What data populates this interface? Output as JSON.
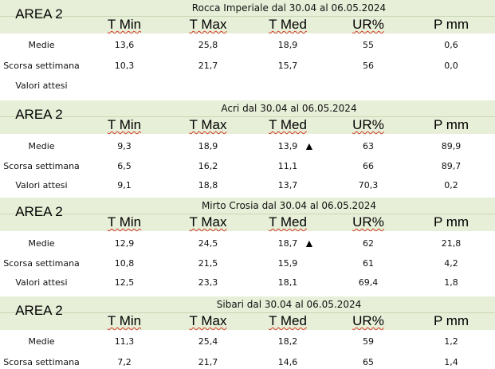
{
  "columns": [
    "T Min",
    "T Max",
    "T Med",
    "UR%",
    "P mm"
  ],
  "blocks": [
    {
      "area": "AREA 2",
      "title": "Rocca Imperiale  dal 30.04 al 06.05.2024",
      "rows": [
        {
          "label": "Medie",
          "values": [
            "13,6",
            "25,8",
            "18,9",
            "55",
            "0,6"
          ]
        },
        {
          "label": "Scorsa settimana",
          "values": [
            "10,3",
            "21,7",
            "15,7",
            "56",
            "0,0"
          ]
        },
        {
          "label": "Valori attesi",
          "values": [
            "",
            "",
            "",
            "",
            ""
          ]
        }
      ]
    },
    {
      "area": "AREA 2",
      "title": "Acri dal 30.04 al 06.05.2024",
      "rows": [
        {
          "label": "Medie",
          "values": [
            "9,3",
            "18,9",
            "13,9",
            "63",
            "89,9"
          ],
          "marker": "▲"
        },
        {
          "label": "Scorsa settimana",
          "values": [
            "6,5",
            "16,2",
            "11,1",
            "66",
            "89,7"
          ]
        },
        {
          "label": "Valori attesi",
          "values": [
            "9,1",
            "18,8",
            "13,7",
            "70,3",
            "0,2"
          ]
        }
      ]
    },
    {
      "area": "AREA 2",
      "title": "Mirto Crosia dal 30.04 al 06.05.2024",
      "rows": [
        {
          "label": "Medie",
          "values": [
            "12,9",
            "24,5",
            "18,7",
            "62",
            "21,8"
          ],
          "marker": "▲"
        },
        {
          "label": "Scorsa settimana",
          "values": [
            "10,8",
            "21,5",
            "15,9",
            "61",
            "4,2"
          ]
        },
        {
          "label": "Valori attesi",
          "values": [
            "12,5",
            "23,3",
            "18,1",
            "69,4",
            "1,8"
          ]
        }
      ]
    },
    {
      "area": "AREA 2",
      "title": "Sibari dal 30.04 al 06.05.2024",
      "rows": [
        {
          "label": "Medie",
          "values": [
            "11,3",
            "25,4",
            "18,2",
            "59",
            "1,2"
          ]
        },
        {
          "label": "Scorsa settimana",
          "values": [
            "7,2",
            "21,7",
            "14,6",
            "65",
            "1,4"
          ]
        }
      ]
    }
  ]
}
